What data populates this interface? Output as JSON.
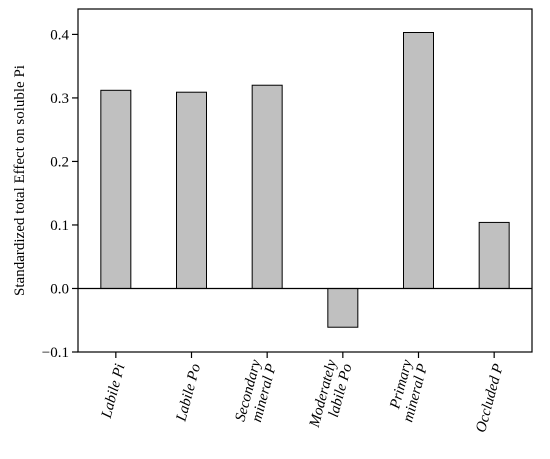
{
  "chart_data": {
    "type": "bar",
    "title": "",
    "xlabel": "",
    "ylabel": "Standardized total Effect on soluble Pi",
    "categories": [
      [
        "Labile Pi"
      ],
      [
        "Labile Po"
      ],
      [
        "Secondary",
        "mineral P"
      ],
      [
        "Moderately",
        "labile Po"
      ],
      [
        "Primary",
        "mineral P"
      ],
      [
        "Occluded P"
      ]
    ],
    "values": [
      0.312,
      0.309,
      0.32,
      -0.061,
      0.403,
      0.104
    ],
    "ylim": [
      -0.1,
      0.44
    ],
    "yticks": [
      -0.1,
      0.0,
      0.1,
      0.2,
      0.3,
      0.4
    ],
    "ytick_labels": [
      "−0.1",
      "0.0",
      "0.1",
      "0.2",
      "0.3",
      "0.4"
    ],
    "grid": false,
    "zero_line": true,
    "bar_color": "#c0c0c0",
    "edge_color": "#000000"
  }
}
